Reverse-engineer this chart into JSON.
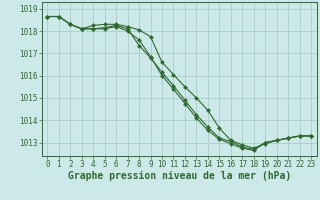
{
  "bg_color": "#cce8e8",
  "grid_color": "#aacccc",
  "line_color": "#2d6a2d",
  "ylim": [
    1012.4,
    1019.3
  ],
  "xlim": [
    -0.5,
    23.5
  ],
  "yticks": [
    1013,
    1014,
    1015,
    1016,
    1017,
    1018,
    1019
  ],
  "xticks": [
    0,
    1,
    2,
    3,
    4,
    5,
    6,
    7,
    8,
    9,
    10,
    11,
    12,
    13,
    14,
    15,
    16,
    17,
    18,
    19,
    20,
    21,
    22,
    23
  ],
  "series": [
    [
      1018.65,
      1018.65,
      1018.3,
      1018.1,
      1018.25,
      1018.3,
      1018.3,
      1018.2,
      1018.05,
      1017.75,
      1016.6,
      1016.05,
      1015.5,
      1015.0,
      1014.45,
      1013.65,
      1013.1,
      1012.9,
      1012.75,
      1012.95,
      1013.1,
      1013.2,
      1013.3,
      1013.3
    ],
    [
      1018.65,
      1018.65,
      1018.3,
      1018.1,
      1018.1,
      1018.1,
      1018.2,
      1018.0,
      1017.6,
      1016.85,
      1016.0,
      1015.4,
      1014.75,
      1014.1,
      1013.55,
      1013.15,
      1012.95,
      1012.75,
      1012.65,
      1013.0,
      1013.1,
      1013.2,
      1013.3,
      1013.3
    ],
    [
      1018.65,
      1018.65,
      1018.3,
      1018.1,
      1018.1,
      1018.15,
      1018.25,
      1018.1,
      1017.35,
      1016.8,
      1016.15,
      1015.55,
      1014.9,
      1014.25,
      1013.7,
      1013.2,
      1013.05,
      1012.8,
      1012.7,
      1013.0,
      1013.1,
      1013.2,
      1013.3,
      1013.3
    ]
  ],
  "xlabel": "Graphe pression niveau de la mer (hPa)",
  "tick_fontsize": 5.5,
  "label_fontsize": 7.0
}
